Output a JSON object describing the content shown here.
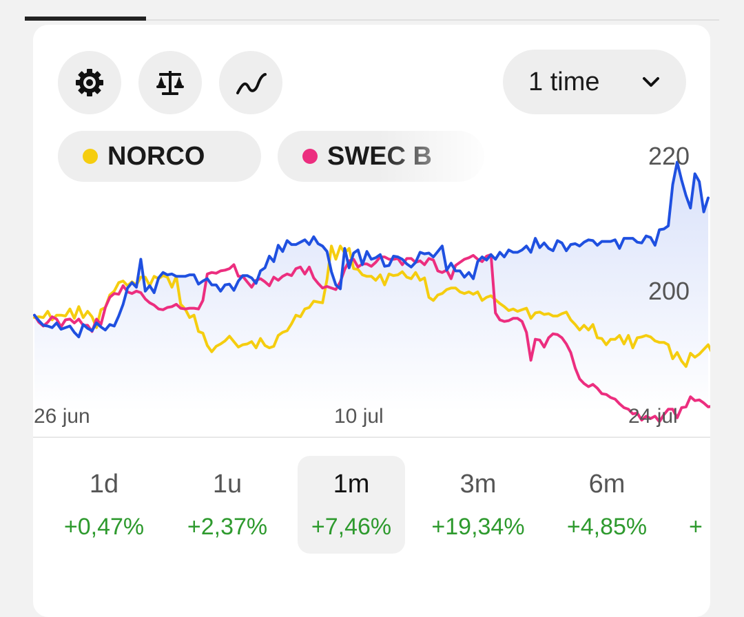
{
  "card": {
    "tools": [
      {
        "icon": "gear-icon"
      },
      {
        "icon": "scale-icon"
      },
      {
        "icon": "line-chart-icon"
      }
    ],
    "range_select": {
      "value": "1 time",
      "icon": "chevron-down-icon"
    },
    "legend": [
      {
        "name": "NORCO",
        "color": "#f5cd0f"
      },
      {
        "name": "SWEC B",
        "color": "#ec2e7f"
      }
    ]
  },
  "chart_data": {
    "type": "line",
    "x_tick_labels": [
      "26 jun",
      "10 jul",
      "24 jul"
    ],
    "y_tick_labels": [
      "220",
      "200"
    ],
    "series": [
      {
        "name": "",
        "color": "#1f50e0",
        "values": [
          200.3,
          199.6,
          199.0,
          198.9,
          198.7,
          199.3,
          198.5,
          198.7,
          198.9,
          198.1,
          197.5,
          199.1,
          198.6,
          198.3,
          199.3,
          198.8,
          198.4,
          199.1,
          198.9,
          200.2,
          201.7,
          203.8,
          204.5,
          203.9,
          207.5,
          203.4,
          204.1,
          203.2,
          205.1,
          205.8,
          205.5,
          205.6,
          205.3,
          205.3,
          205.3,
          205.5,
          205.5,
          204.3,
          204.7,
          205.0,
          204.2,
          204.2,
          203.4,
          204.2,
          204.3,
          203.5,
          204.7,
          205.4,
          205.4,
          205.1,
          204.4,
          206.0,
          206.4,
          207.9,
          207.2,
          209.3,
          208.5,
          209.9,
          209.4,
          209.4,
          209.7,
          210.0,
          209.4,
          210.4,
          209.5,
          209.2,
          208.5,
          205.9,
          204.2,
          203.7,
          208.9,
          206.4,
          208.3,
          208.7,
          206.8,
          208.5,
          207.5,
          207.7,
          208.1,
          206.6,
          206.7,
          207.9,
          207.8,
          207.5,
          206.9,
          206.5,
          207.1,
          208.4,
          208.2,
          208.3,
          207.8,
          208.5,
          209.2,
          206.1,
          207.0,
          206.0,
          206.0,
          205.2,
          205.8,
          205.0,
          207.2,
          207.8,
          207.4,
          208.1,
          207.5,
          208.4,
          207.8,
          208.7,
          208.4,
          208.4,
          208.7,
          209.2,
          208.4,
          210.2,
          209.0,
          209.6,
          208.9,
          208.6,
          209.9,
          209.6,
          208.6,
          209.4,
          209.5,
          209.2,
          209.7,
          210.0,
          209.9,
          209.3,
          209.8,
          209.8,
          209.8,
          210.0,
          208.9,
          210.2,
          210.2,
          210.2,
          209.7,
          209.6,
          210.5,
          210.3,
          209.3,
          211.3,
          211.4,
          211.8,
          217.1,
          220.0,
          217.7,
          215.7,
          214.1,
          218.5,
          217.5,
          213.6,
          215.4
        ]
      },
      {
        "name": "NORCO",
        "color": "#f5cd0f",
        "values": [
          200.0,
          200.1,
          200.0,
          200.8,
          199.7,
          200.3,
          200.3,
          200.2,
          201.1,
          199.9,
          201.4,
          200.0,
          200.8,
          200.1,
          198.7,
          201.0,
          201.3,
          202.9,
          203.4,
          204.5,
          204.7,
          204.1,
          204.6,
          204.2,
          205.2,
          205.2,
          204.1,
          205.3,
          205.0,
          205.4,
          205.2,
          203.9,
          205.3,
          201.7,
          201.1,
          200.0,
          200.3,
          198.2,
          198.0,
          196.4,
          195.6,
          196.3,
          196.6,
          197.0,
          197.6,
          196.9,
          196.2,
          196.5,
          196.6,
          196.9,
          196.1,
          197.3,
          196.4,
          196.1,
          196.3,
          197.7,
          198.1,
          198.3,
          199.2,
          200.3,
          200.1,
          201.1,
          201.3,
          202.1,
          202.0,
          201.9,
          204.9,
          209.2,
          207.5,
          209.2,
          208.3,
          208.9,
          206.3,
          206.2,
          205.5,
          205.3,
          205.3,
          204.8,
          205.5,
          204.2,
          205.6,
          205.4,
          205.5,
          205.9,
          205.2,
          205.0,
          205.8,
          204.8,
          205.1,
          202.6,
          202.2,
          202.9,
          203.1,
          203.6,
          203.8,
          203.8,
          203.3,
          203.1,
          203.3,
          203.0,
          203.3,
          202.2,
          202.6,
          202.8,
          202.3,
          201.8,
          201.4,
          200.9,
          201.1,
          200.8,
          201.0,
          201.2,
          199.9,
          200.6,
          200.7,
          200.4,
          200.5,
          200.2,
          200.2,
          200.5,
          200.7,
          199.7,
          199.1,
          198.4,
          199.0,
          198.4,
          199.1,
          197.4,
          197.3,
          196.5,
          197.2,
          197.2,
          197.7,
          196.6,
          197.7,
          196.1,
          197.4,
          197.5,
          197.7,
          197.5,
          197.0,
          196.8,
          196.8,
          196.5,
          194.7,
          195.5,
          194.4,
          193.7,
          195.4,
          194.9,
          195.3,
          195.9,
          196.5,
          195.3,
          195.5,
          196.1,
          196.0,
          194.8,
          194.6,
          195.3
        ]
      },
      {
        "name": "SWEC B",
        "color": "#ec2e7f",
        "values": [
          200.3,
          199.4,
          198.9,
          199.4,
          200.1,
          199.8,
          198.8,
          199.7,
          199.8,
          199.3,
          199.8,
          199.0,
          199.0,
          198.2,
          199.8,
          199.1,
          201.3,
          202.6,
          203.1,
          203.0,
          204.1,
          203.3,
          203.1,
          203.4,
          203.2,
          202.4,
          201.9,
          201.6,
          201.1,
          201.0,
          201.3,
          201.4,
          201.7,
          201.2,
          201.1,
          201.2,
          201.2,
          201.1,
          202.2,
          205.6,
          205.8,
          205.7,
          206.0,
          206.1,
          206.3,
          206.8,
          205.3,
          205.3,
          204.6,
          203.9,
          204.8,
          205.0,
          204.6,
          204.1,
          205.2,
          204.8,
          205.3,
          205.6,
          205.4,
          206.3,
          206.5,
          205.6,
          206.5,
          205.1,
          204.4,
          203.8,
          204.0,
          203.8,
          203.6,
          204.6,
          206.2,
          207.3,
          207.5,
          206.5,
          206.9,
          206.9,
          206.6,
          207.1,
          207.8,
          207.8,
          207.5,
          207.5,
          207.6,
          206.8,
          207.6,
          207.6,
          207.1,
          207.3,
          206.8,
          207.6,
          207.4,
          206.0,
          205.8,
          206.1,
          205.0,
          206.7,
          207.1,
          207.5,
          207.7,
          208.0,
          207.5,
          207.2,
          207.9,
          208.1,
          200.6,
          199.7,
          199.5,
          199.6,
          199.9,
          199.9,
          199.5,
          198.1,
          194.5,
          197.2,
          197.1,
          196.2,
          197.4,
          197.9,
          197.8,
          197.4,
          196.6,
          195.5,
          193.5,
          192.1,
          191.5,
          191.1,
          191.4,
          190.9,
          190.2,
          190.1,
          189.7,
          189.5,
          188.9,
          188.4,
          188.2,
          187.6,
          187.7,
          186.8,
          187.3,
          187.0,
          187.3,
          186.6,
          187.5,
          188.2,
          188.2,
          187.1,
          188.4,
          188.5,
          189.8,
          189.3,
          189.4,
          189.0,
          188.5,
          188.6,
          187.9,
          187.4,
          187.5,
          187.6
        ]
      }
    ],
    "ylim": [
      184.5,
      223.5
    ]
  },
  "periods": [
    {
      "label": "1d",
      "change": "+0,47%",
      "active": false
    },
    {
      "label": "1u",
      "change": "+2,37%",
      "active": false
    },
    {
      "label": "1m",
      "change": "+7,46%",
      "active": true
    },
    {
      "label": "3m",
      "change": "+19,34%",
      "active": false
    },
    {
      "label": "6m",
      "change": "+4,85%",
      "active": false
    },
    {
      "label": "",
      "change": "+",
      "active": false
    }
  ]
}
